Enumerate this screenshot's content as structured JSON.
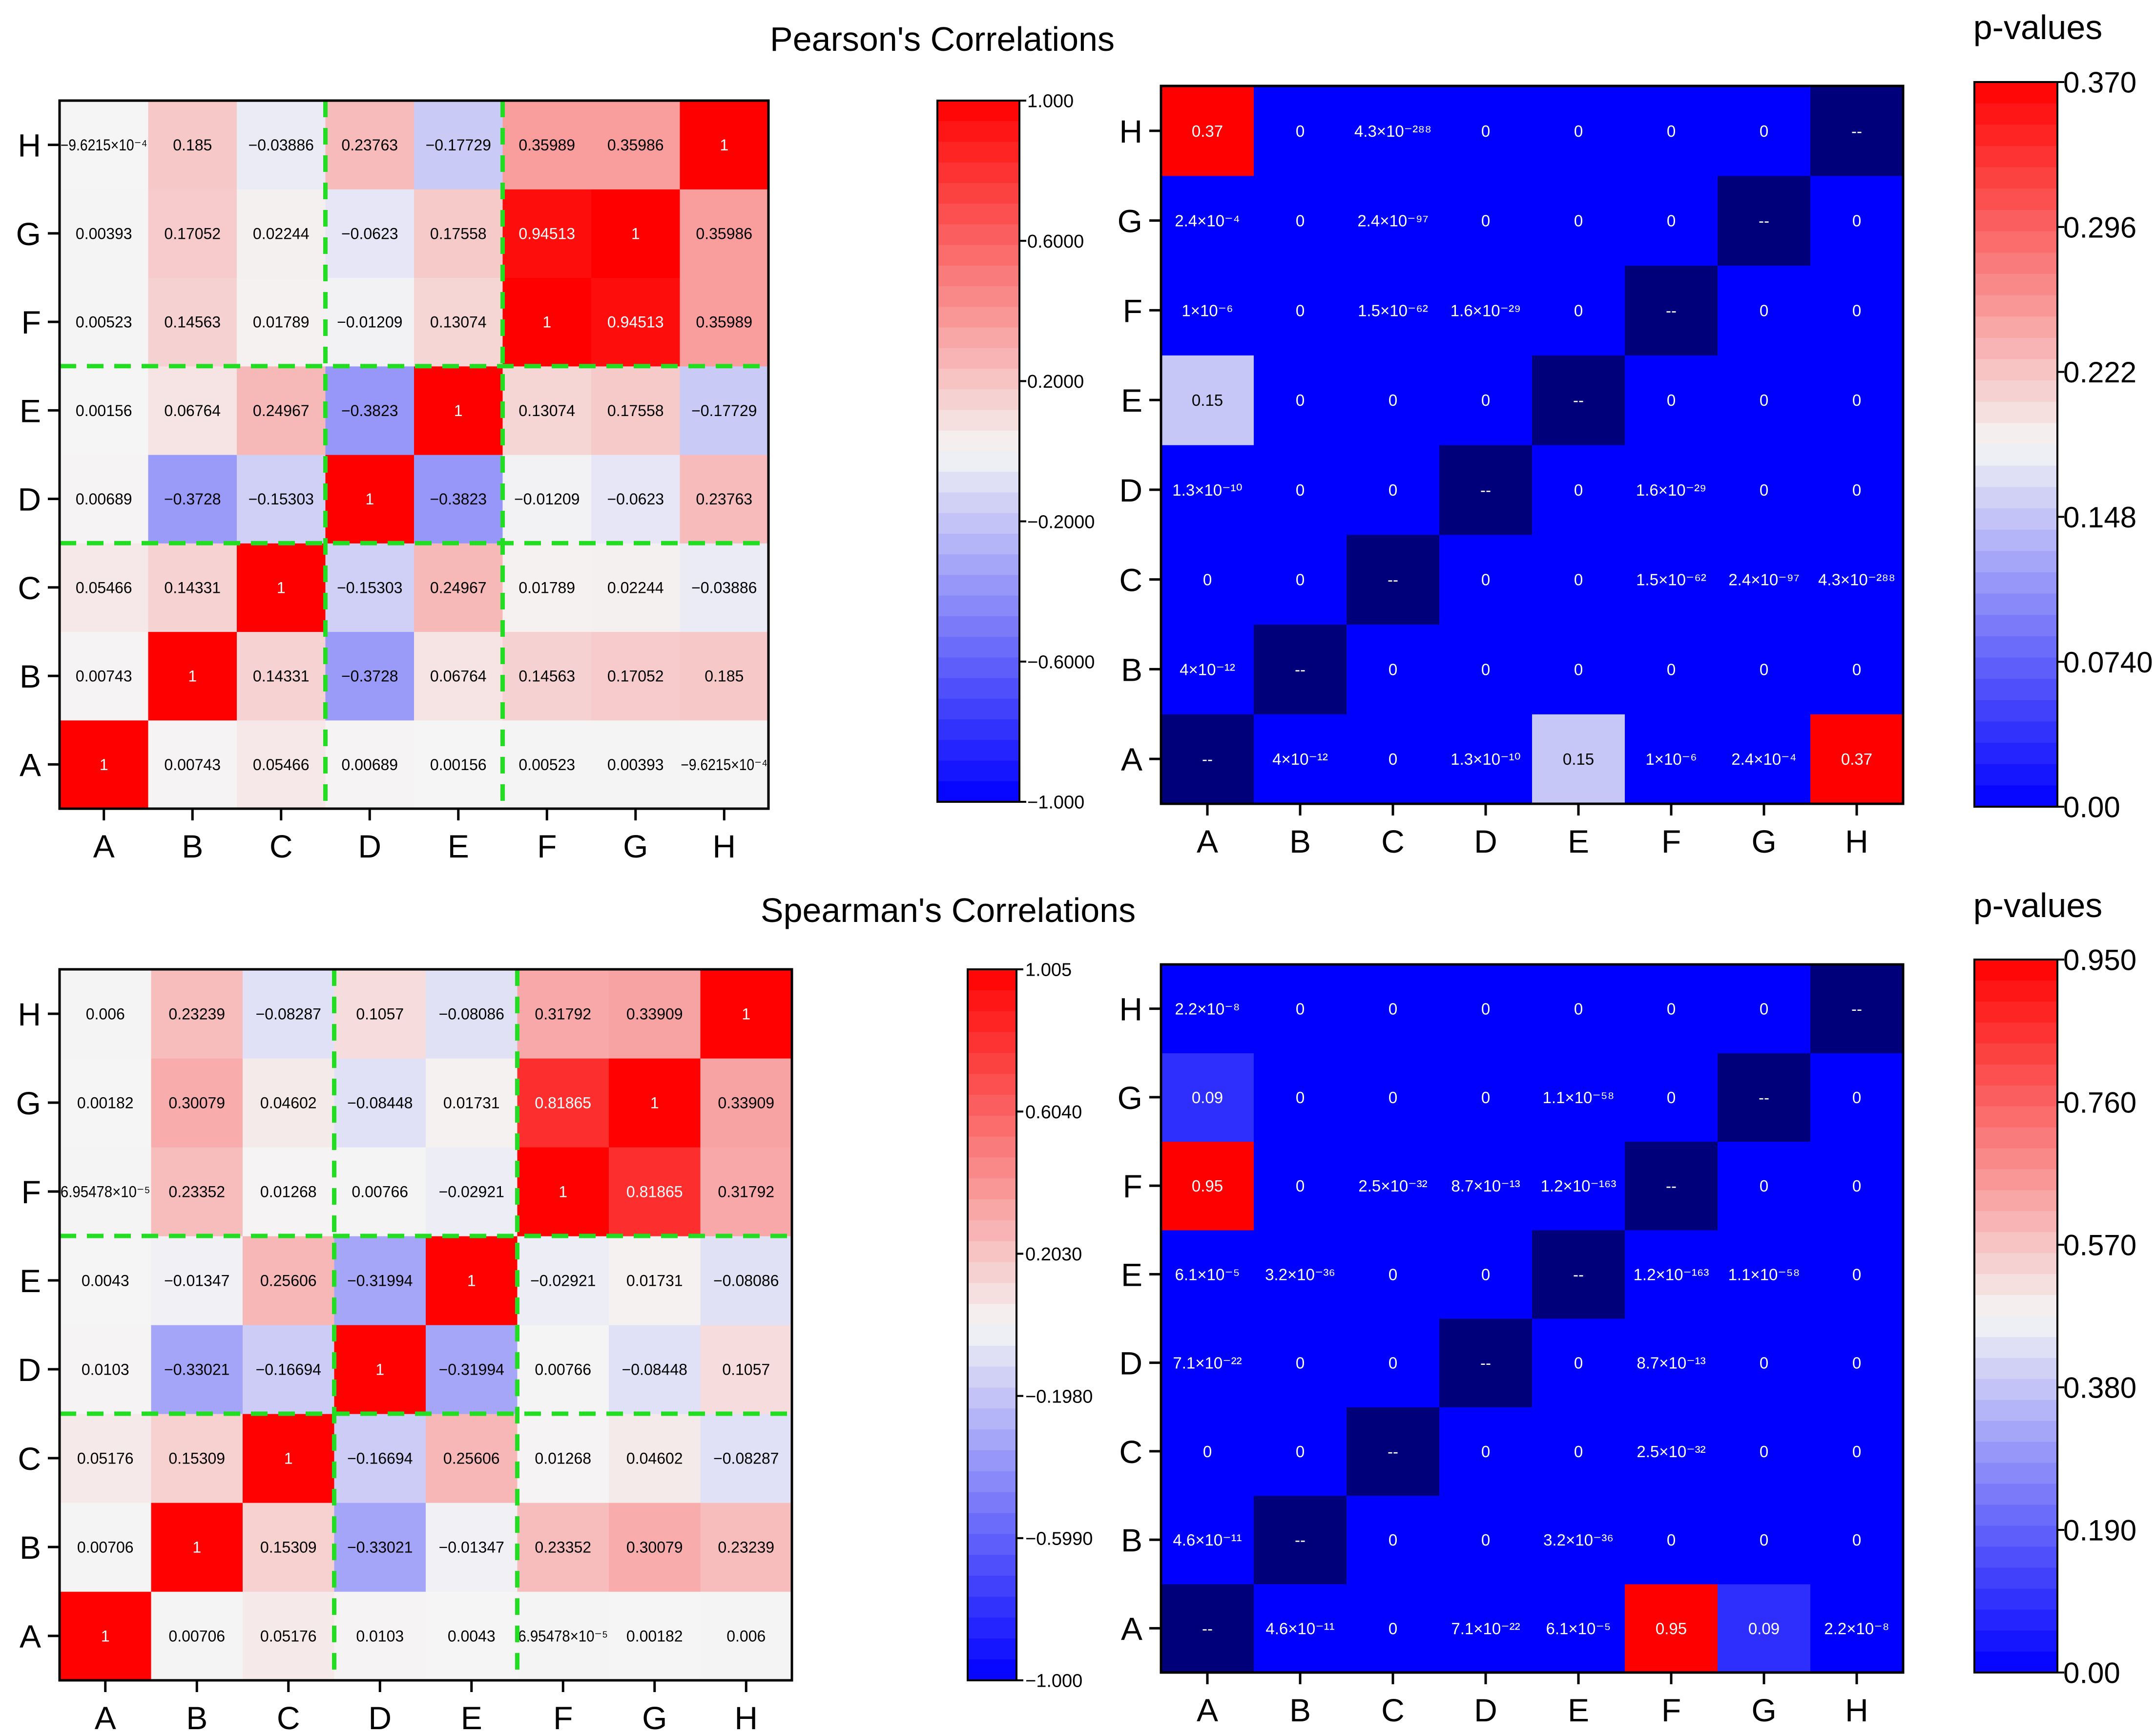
{
  "figure": {
    "pearson_title": "Pearson's Correlations",
    "spearman_title": "Spearman's Correlations",
    "pvalues_label": "p-values"
  },
  "colors": {
    "red": "#ff0000",
    "blue": "#0000ff",
    "white": "#f5f5f5",
    "navy": "#00007a",
    "divider": "#22dd22"
  },
  "chart_data": [
    {
      "id": "pearson-corr",
      "type": "heatmap",
      "title": "Pearson's Correlations",
      "categories": [
        "A",
        "B",
        "C",
        "D",
        "E",
        "F",
        "G",
        "H"
      ],
      "diagonal_label": "",
      "matrix": [
        [
          "1",
          "0.00743",
          "0.05466",
          "0.00689",
          "0.00156",
          "0.00523",
          "0.00393",
          "−9.6215×10⁻⁴"
        ],
        [
          "0.00743",
          "1",
          "0.14331",
          "−0.3728",
          "0.06764",
          "0.14563",
          "0.17052",
          "0.185"
        ],
        [
          "0.05466",
          "0.14331",
          "1",
          "−0.15303",
          "0.24967",
          "0.01789",
          "0.02244",
          "−0.03886"
        ],
        [
          "0.00689",
          "−0.3728",
          "−0.15303",
          "1",
          "−0.3823",
          "−0.01209",
          "−0.0623",
          "0.23763"
        ],
        [
          "0.00156",
          "0.06764",
          "0.24967",
          "−0.3823",
          "1",
          "0.13074",
          "0.17558",
          "−0.17729"
        ],
        [
          "0.00523",
          "0.14563",
          "0.01789",
          "−0.01209",
          "0.13074",
          "1",
          "0.94513",
          "0.35989"
        ],
        [
          "0.00393",
          "0.17052",
          "0.02244",
          "−0.0623",
          "0.17558",
          "0.94513",
          "1",
          "0.35986"
        ],
        [
          "−9.6215×10⁻⁴",
          "0.185",
          "−0.03886",
          "0.23763",
          "−0.17729",
          "0.35989",
          "0.35986",
          "1"
        ]
      ],
      "values": [
        [
          1,
          0.00743,
          0.05466,
          0.00689,
          0.00156,
          0.00523,
          0.00393,
          -0.00096215
        ],
        [
          0.00743,
          1,
          0.14331,
          -0.3728,
          0.06764,
          0.14563,
          0.17052,
          0.185
        ],
        [
          0.05466,
          0.14331,
          1,
          -0.15303,
          0.24967,
          0.01789,
          0.02244,
          -0.03886
        ],
        [
          0.00689,
          -0.3728,
          -0.15303,
          1,
          -0.3823,
          -0.01209,
          -0.0623,
          0.23763
        ],
        [
          0.00156,
          0.06764,
          0.24967,
          -0.3823,
          1,
          0.13074,
          0.17558,
          -0.17729
        ],
        [
          0.00523,
          0.14563,
          0.01789,
          -0.01209,
          0.13074,
          1,
          0.94513,
          0.35989
        ],
        [
          0.00393,
          0.17052,
          0.02244,
          -0.0623,
          0.17558,
          0.94513,
          1,
          0.35986
        ],
        [
          -0.00096215,
          0.185,
          -0.03886,
          0.23763,
          -0.17729,
          0.35989,
          0.35986,
          1
        ]
      ],
      "color_range": [
        -1.0,
        1.0
      ],
      "divider_indices": [
        3,
        5
      ],
      "colorbar_ticks": [
        "1.000",
        "0.6000",
        "0.2000",
        "−0.2000",
        "−0.6000",
        "−1.000"
      ],
      "colorbar_tick_values": [
        1.0,
        0.6,
        0.2,
        -0.2,
        -0.6,
        -1.0
      ]
    },
    {
      "id": "pearson-pvalues",
      "type": "heatmap",
      "title": "p-values",
      "categories": [
        "A",
        "B",
        "C",
        "D",
        "E",
        "F",
        "G",
        "H"
      ],
      "diagonal_label": "--",
      "matrix": [
        [
          "--",
          "4×10⁻¹²",
          "0",
          "1.3×10⁻¹⁰",
          "0.15",
          "1×10⁻⁶",
          "2.4×10⁻⁴",
          "0.37"
        ],
        [
          "4×10⁻¹²",
          "--",
          "0",
          "0",
          "0",
          "0",
          "0",
          "0"
        ],
        [
          "0",
          "0",
          "--",
          "0",
          "0",
          "1.5×10⁻⁶²",
          "2.4×10⁻⁹⁷",
          "4.3×10⁻²⁸⁸"
        ],
        [
          "1.3×10⁻¹⁰",
          "0",
          "0",
          "--",
          "0",
          "1.6×10⁻²⁹",
          "0",
          "0"
        ],
        [
          "0.15",
          "0",
          "0",
          "0",
          "--",
          "0",
          "0",
          "0"
        ],
        [
          "1×10⁻⁶",
          "0",
          "1.5×10⁻⁶²",
          "1.6×10⁻²⁹",
          "0",
          "--",
          "0",
          "0"
        ],
        [
          "2.4×10⁻⁴",
          "0",
          "2.4×10⁻⁹⁷",
          "0",
          "0",
          "0",
          "--",
          "0"
        ],
        [
          "0.37",
          "0",
          "4.3×10⁻²⁸⁸",
          "0",
          "0",
          "0",
          "0",
          "--"
        ]
      ],
      "values": [
        [
          null,
          4e-12,
          0,
          1.3e-10,
          0.15,
          1e-06,
          0.00024,
          0.37
        ],
        [
          4e-12,
          null,
          0,
          0,
          0,
          0,
          0,
          0
        ],
        [
          0,
          0,
          null,
          0,
          0,
          1.5e-62,
          2.4e-97,
          0
        ],
        [
          1.3e-10,
          0,
          0,
          null,
          0,
          1.6e-29,
          0,
          0
        ],
        [
          0.15,
          0,
          0,
          0,
          null,
          0,
          0,
          0
        ],
        [
          1e-06,
          0,
          1.5e-62,
          1.6e-29,
          0,
          null,
          0,
          0
        ],
        [
          0.00024,
          0,
          2.4e-97,
          0,
          0,
          0,
          null,
          0
        ],
        [
          0.37,
          0,
          0,
          0,
          0,
          0,
          0,
          null
        ]
      ],
      "color_range": [
        0.0,
        0.37
      ],
      "divider_indices": [],
      "colorbar_ticks": [
        "0.370",
        "0.296",
        "0.222",
        "0.148",
        "0.0740",
        "0.00"
      ],
      "colorbar_tick_values": [
        0.37,
        0.296,
        0.222,
        0.148,
        0.074,
        0.0
      ]
    },
    {
      "id": "spearman-corr",
      "type": "heatmap",
      "title": "Spearman's Correlations",
      "categories": [
        "A",
        "B",
        "C",
        "D",
        "E",
        "F",
        "G",
        "H"
      ],
      "diagonal_label": "",
      "matrix": [
        [
          "1",
          "0.00706",
          "0.05176",
          "0.0103",
          "0.0043",
          "6.95478×10⁻⁵",
          "0.00182",
          "0.006"
        ],
        [
          "0.00706",
          "1",
          "0.15309",
          "−0.33021",
          "−0.01347",
          "0.23352",
          "0.30079",
          "0.23239"
        ],
        [
          "0.05176",
          "0.15309",
          "1",
          "−0.16694",
          "0.25606",
          "0.01268",
          "0.04602",
          "−0.08287"
        ],
        [
          "0.0103",
          "−0.33021",
          "−0.16694",
          "1",
          "−0.31994",
          "0.00766",
          "−0.08448",
          "0.1057"
        ],
        [
          "0.0043",
          "−0.01347",
          "0.25606",
          "−0.31994",
          "1",
          "−0.02921",
          "0.01731",
          "−0.08086"
        ],
        [
          "6.95478×10⁻⁵",
          "0.23352",
          "0.01268",
          "0.00766",
          "−0.02921",
          "1",
          "0.81865",
          "0.31792"
        ],
        [
          "0.00182",
          "0.30079",
          "0.04602",
          "−0.08448",
          "0.01731",
          "0.81865",
          "1",
          "0.33909"
        ],
        [
          "0.006",
          "0.23239",
          "−0.08287",
          "0.1057",
          "−0.08086",
          "0.31792",
          "0.33909",
          "1"
        ]
      ],
      "values": [
        [
          1,
          0.00706,
          0.05176,
          0.0103,
          0.0043,
          6.95478e-05,
          0.00182,
          0.006
        ],
        [
          0.00706,
          1,
          0.15309,
          -0.33021,
          -0.01347,
          0.23352,
          0.30079,
          0.23239
        ],
        [
          0.05176,
          0.15309,
          1,
          -0.16694,
          0.25606,
          0.01268,
          0.04602,
          -0.08287
        ],
        [
          0.0103,
          -0.33021,
          -0.16694,
          1,
          -0.31994,
          0.00766,
          -0.08448,
          0.1057
        ],
        [
          0.0043,
          -0.01347,
          0.25606,
          -0.31994,
          1,
          -0.02921,
          0.01731,
          -0.08086
        ],
        [
          6.95478e-05,
          0.23352,
          0.01268,
          0.00766,
          -0.02921,
          1,
          0.81865,
          0.31792
        ],
        [
          0.00182,
          0.30079,
          0.04602,
          -0.08448,
          0.01731,
          0.81865,
          1,
          0.33909
        ],
        [
          0.006,
          0.23239,
          -0.08287,
          0.1057,
          -0.08086,
          0.31792,
          0.33909,
          1
        ]
      ],
      "color_range": [
        -1.0,
        1.005
      ],
      "divider_indices": [
        3,
        5
      ],
      "colorbar_ticks": [
        "1.005",
        "0.6040",
        "0.2030",
        "−0.1980",
        "−0.5990",
        "−1.000"
      ],
      "colorbar_tick_values": [
        1.005,
        0.604,
        0.203,
        -0.198,
        -0.599,
        -1.0
      ]
    },
    {
      "id": "spearman-pvalues",
      "type": "heatmap",
      "title": "p-values",
      "categories": [
        "A",
        "B",
        "C",
        "D",
        "E",
        "F",
        "G",
        "H"
      ],
      "diagonal_label": "--",
      "matrix": [
        [
          "--",
          "4.6×10⁻¹¹",
          "0",
          "7.1×10⁻²²",
          "6.1×10⁻⁵",
          "0.95",
          "0.09",
          "2.2×10⁻⁸"
        ],
        [
          "4.6×10⁻¹¹",
          "--",
          "0",
          "0",
          "3.2×10⁻³⁶",
          "0",
          "0",
          "0"
        ],
        [
          "0",
          "0",
          "--",
          "0",
          "0",
          "2.5×10⁻³²",
          "0",
          "0"
        ],
        [
          "7.1×10⁻²²",
          "0",
          "0",
          "--",
          "0",
          "8.7×10⁻¹³",
          "0",
          "0"
        ],
        [
          "6.1×10⁻⁵",
          "3.2×10⁻³⁶",
          "0",
          "0",
          "--",
          "1.2×10⁻¹⁶³",
          "1.1×10⁻⁵⁸",
          "0"
        ],
        [
          "0.95",
          "0",
          "2.5×10⁻³²",
          "8.7×10⁻¹³",
          "1.2×10⁻¹⁶³",
          "--",
          "0",
          "0"
        ],
        [
          "0.09",
          "0",
          "0",
          "0",
          "1.1×10⁻⁵⁸",
          "0",
          "--",
          "0"
        ],
        [
          "2.2×10⁻⁸",
          "0",
          "0",
          "0",
          "0",
          "0",
          "0",
          "--"
        ]
      ],
      "values": [
        [
          null,
          4.6e-11,
          0,
          7.1e-22,
          6.1e-05,
          0.95,
          0.09,
          2.2e-08
        ],
        [
          4.6e-11,
          null,
          0,
          0,
          3.2e-36,
          0,
          0,
          0
        ],
        [
          0,
          0,
          null,
          0,
          0,
          2.5e-32,
          0,
          0
        ],
        [
          7.1e-22,
          0,
          0,
          null,
          0,
          8.7e-13,
          0,
          0
        ],
        [
          6.1e-05,
          3.2e-36,
          0,
          0,
          null,
          1.2e-163,
          1.1e-58,
          0
        ],
        [
          0.95,
          0,
          2.5e-32,
          8.7e-13,
          1.2e-163,
          null,
          0,
          0
        ],
        [
          0.09,
          0,
          0,
          0,
          1.1e-58,
          0,
          null,
          0
        ],
        [
          2.2e-08,
          0,
          0,
          0,
          0,
          0,
          0,
          null
        ]
      ],
      "color_range": [
        0.0,
        0.95
      ],
      "divider_indices": [],
      "colorbar_ticks": [
        "0.950",
        "0.760",
        "0.570",
        "0.380",
        "0.190",
        "0.00"
      ],
      "colorbar_tick_values": [
        0.95,
        0.76,
        0.57,
        0.38,
        0.19,
        0.0
      ]
    }
  ]
}
